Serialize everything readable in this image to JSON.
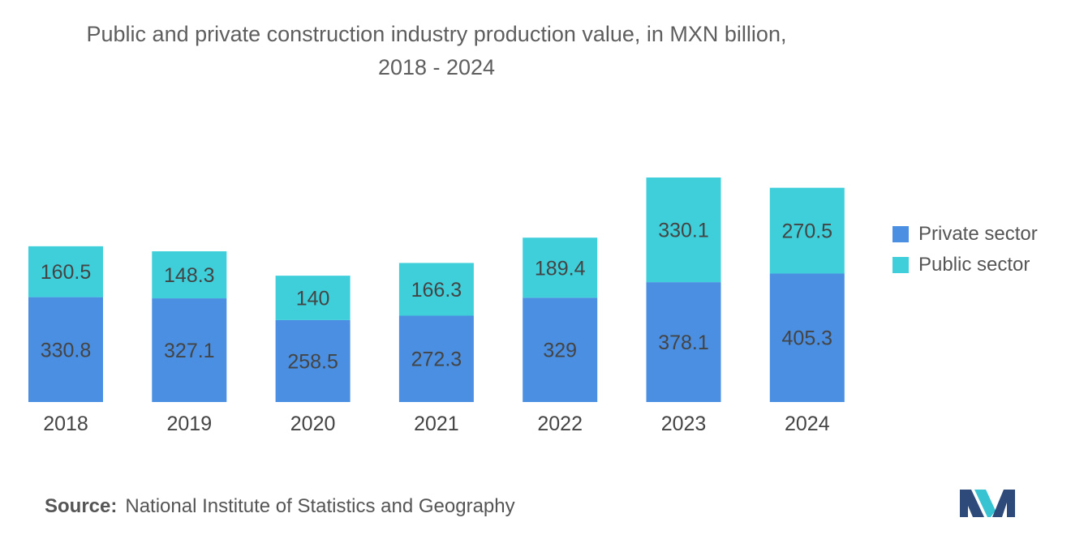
{
  "chart_data": {
    "type": "stacked-bar",
    "title_line1": "Public and private construction industry production value, in MXN billion,",
    "title_line2": "2018 - 2024",
    "categories": [
      "2018",
      "2019",
      "2020",
      "2021",
      "2022",
      "2023",
      "2024"
    ],
    "series": [
      {
        "name": "Private sector",
        "color": "#4a8fe2",
        "values": [
          330.8,
          327.1,
          258.5,
          272.3,
          329,
          378.1,
          405.3
        ],
        "labels": [
          "330.8",
          "327.1",
          "258.5",
          "272.3",
          "329",
          "378.1",
          "405.3"
        ]
      },
      {
        "name": "Public sector",
        "color": "#3ecfdb",
        "values": [
          160.5,
          148.3,
          140,
          166.3,
          189.4,
          330.1,
          270.5
        ],
        "labels": [
          "160.5",
          "148.3",
          "140",
          "166.3",
          "189.4",
          "330.1",
          "270.5"
        ]
      }
    ],
    "xlabel": "",
    "ylabel": "",
    "ylim": [
      0,
      708.2
    ],
    "grid": false,
    "legend_position": "right"
  },
  "source": {
    "label": "Source:",
    "text": "National Institute of Statistics and Geography"
  },
  "logo": {
    "icon": "mordor-intelligence-logo-icon",
    "colors": [
      "#2d4a7a",
      "#38c3d3"
    ]
  }
}
